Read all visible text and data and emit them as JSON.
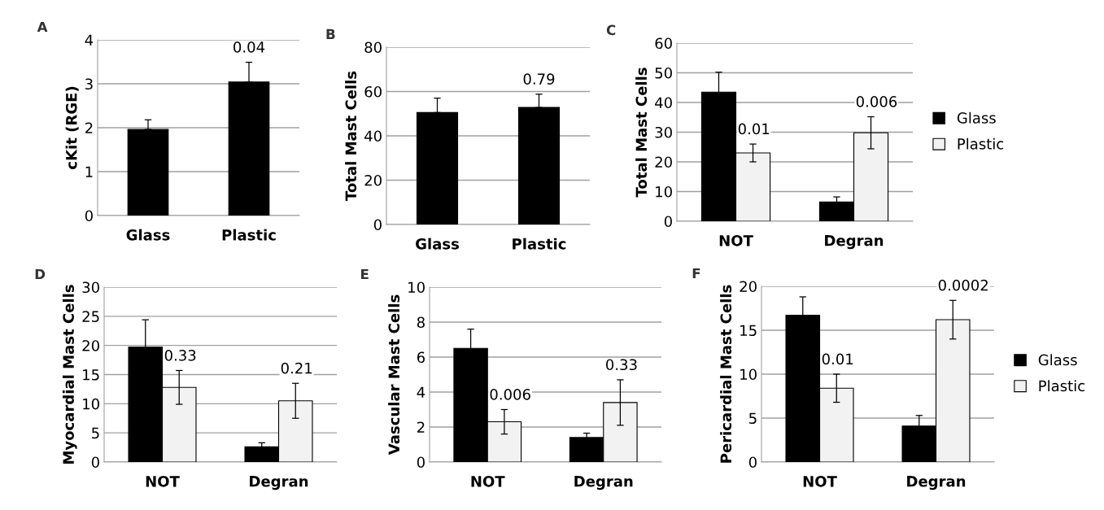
{
  "chart_data": [
    {
      "type": "bar",
      "title": "A",
      "ylabel": "cKit (RGE)",
      "categories": [
        "Glass",
        "Plastic"
      ],
      "values": [
        1.96,
        3.04
      ],
      "color": "#000000",
      "errors": [
        [
          1.96,
          2.18
        ],
        [
          3.04,
          3.49
        ]
      ],
      "ylim": [
        0,
        4
      ],
      "yticks": [
        0,
        1,
        2,
        3,
        4
      ],
      "grid": "y",
      "annotations": [
        null,
        "0.04"
      ]
    },
    {
      "type": "bar",
      "title": "B",
      "ylabel": "Total Mast Cells",
      "categories": [
        "Glass",
        "Plastic"
      ],
      "values": [
        50.5,
        52.8
      ],
      "color": "#000000",
      "errors": [
        [
          50.5,
          57
        ],
        [
          52.8,
          58.8
        ]
      ],
      "ylim": [
        0,
        80
      ],
      "yticks": [
        0,
        20,
        40,
        60,
        80
      ],
      "grid": "y",
      "annotations": [
        null,
        "0.79"
      ]
    },
    {
      "type": "bar",
      "title": "C",
      "ylabel": "Total Mast Cells",
      "categories": [
        "NOT",
        "Degran"
      ],
      "series": [
        {
          "name": "Glass",
          "color": "#000000",
          "values": [
            43.5,
            6.5
          ],
          "errors": [
            6.7,
            1.7
          ]
        },
        {
          "name": "Plastic",
          "color": "#f2f2f2",
          "values": [
            23,
            29.8
          ],
          "errors": [
            3,
            5.4
          ]
        }
      ],
      "ylim": [
        0,
        60
      ],
      "yticks": [
        0,
        10,
        20,
        30,
        40,
        50,
        60
      ],
      "grid": "y",
      "legend": "right",
      "annotations": [
        "0.01",
        "0.006"
      ]
    },
    {
      "type": "bar",
      "title": "D",
      "ylabel": "Myocardial Mast Cells",
      "categories": [
        "NOT",
        "Degran"
      ],
      "series": [
        {
          "color": "#000000",
          "values": [
            19.7,
            2.6
          ],
          "errors": [
            4.7,
            0.7
          ]
        },
        {
          "color": "#f2f2f2",
          "values": [
            12.8,
            10.5
          ],
          "errors": [
            2.9,
            3
          ]
        }
      ],
      "ylim": [
        0,
        30
      ],
      "yticks": [
        0,
        5,
        10,
        15,
        20,
        25,
        30
      ],
      "grid": "y",
      "annotations": [
        "0.33",
        "0.21"
      ]
    },
    {
      "type": "bar",
      "title": "E",
      "ylabel": "Vascular Mast Cells",
      "categories": [
        "NOT",
        "Degran"
      ],
      "series": [
        {
          "color": "#000000",
          "values": [
            6.5,
            1.4
          ],
          "errors": [
            1.1,
            0.25
          ]
        },
        {
          "color": "#f2f2f2",
          "values": [
            2.3,
            3.4
          ],
          "errors": [
            0.7,
            1.3
          ]
        }
      ],
      "ylim": [
        0,
        10
      ],
      "yticks": [
        0,
        2,
        4,
        6,
        8,
        10
      ],
      "grid": "y",
      "annotations": [
        "0.006",
        "0.33"
      ]
    },
    {
      "type": "bar",
      "title": "F",
      "ylabel": "Pericardial Mast Cells",
      "categories": [
        "NOT",
        "Degran"
      ],
      "series": [
        {
          "name": "Glass",
          "color": "#000000",
          "values": [
            16.7,
            4.1
          ],
          "errors": [
            2.1,
            1.2
          ]
        },
        {
          "name": "Plastic",
          "color": "#f2f2f2",
          "values": [
            8.4,
            16.2
          ],
          "errors": [
            1.6,
            2.2
          ]
        }
      ],
      "ylim": [
        0,
        20
      ],
      "yticks": [
        0,
        5,
        10,
        15,
        20
      ],
      "grid": "y",
      "legend": "right",
      "annotations": [
        "0.01",
        "0.0002"
      ]
    }
  ]
}
